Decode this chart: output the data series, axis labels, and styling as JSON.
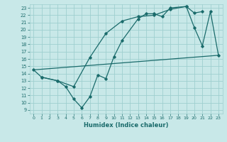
{
  "xlabel": "Humidex (Indice chaleur)",
  "xlim": [
    -0.5,
    23.5
  ],
  "ylim": [
    8.5,
    23.5
  ],
  "xticks": [
    0,
    1,
    2,
    3,
    4,
    5,
    6,
    7,
    8,
    9,
    10,
    11,
    12,
    13,
    14,
    15,
    16,
    17,
    18,
    19,
    20,
    21,
    22,
    23
  ],
  "yticks": [
    9,
    10,
    11,
    12,
    13,
    14,
    15,
    16,
    17,
    18,
    19,
    20,
    21,
    22,
    23
  ],
  "bg_color": "#c8e8e8",
  "grid_color": "#9fcfcf",
  "line_color": "#1a6b6b",
  "line1_x": [
    0,
    23
  ],
  "line1_y": [
    14.5,
    16.5
  ],
  "line2_x": [
    0,
    1,
    3,
    4,
    5,
    6,
    7,
    8,
    9,
    10,
    11,
    13,
    14,
    15,
    16,
    17,
    19,
    20,
    21,
    22,
    23
  ],
  "line2_y": [
    14.5,
    13.5,
    13.0,
    12.2,
    10.5,
    9.3,
    10.8,
    13.8,
    13.3,
    16.3,
    18.5,
    21.5,
    22.2,
    22.2,
    21.8,
    23.0,
    23.2,
    20.3,
    17.8,
    22.5,
    16.5
  ],
  "line3_x": [
    1,
    3,
    5,
    7,
    9,
    11,
    13,
    15,
    17,
    19,
    20,
    21
  ],
  "line3_y": [
    13.5,
    13.0,
    12.2,
    16.2,
    19.5,
    21.2,
    21.8,
    22.0,
    22.8,
    23.2,
    22.3,
    22.5
  ]
}
